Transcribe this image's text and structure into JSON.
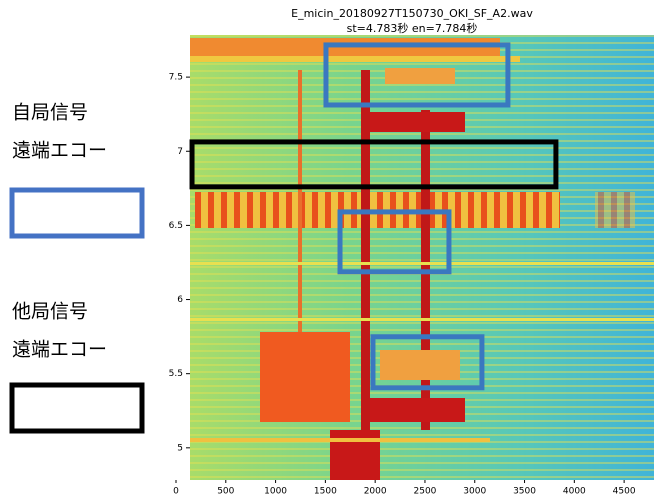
{
  "chart_data": {
    "type": "spectrogram",
    "title": "E_micin_20180927T150730_OKI_SF_A2.wav",
    "subtitle": "st=4.783秒 en=7.784秒",
    "xlim": [
      0,
      4800
    ],
    "xticks": [
      0,
      500,
      1000,
      1500,
      2000,
      2500,
      3000,
      3500,
      4000,
      4500
    ],
    "ylim": [
      4.783,
      7.784
    ],
    "yticks": [
      5,
      5.5,
      6,
      6.5,
      7,
      7.5
    ],
    "annotations": [
      {
        "x": [
          1506,
          3333
        ],
        "y": [
          7.312,
          7.717
        ],
        "color": "#3a78c0"
      },
      {
        "x": [
          161,
          3815
        ],
        "y": [
          6.76,
          7.063
        ],
        "color": "#000000"
      },
      {
        "x": [
          1647,
          2741
        ],
        "y": [
          6.187,
          6.591
        ],
        "color": "#3a78c0"
      },
      {
        "x": [
          1978,
          3072
        ],
        "y": [
          5.405,
          5.749
        ],
        "color": "#3a78c0"
      }
    ],
    "legend": [
      {
        "lines": [
          "自局信号",
          "遠端エコー"
        ],
        "color": "#4472c4"
      },
      {
        "lines": [
          "他局信号",
          "遠端エコー"
        ],
        "color": "#000000"
      }
    ]
  }
}
